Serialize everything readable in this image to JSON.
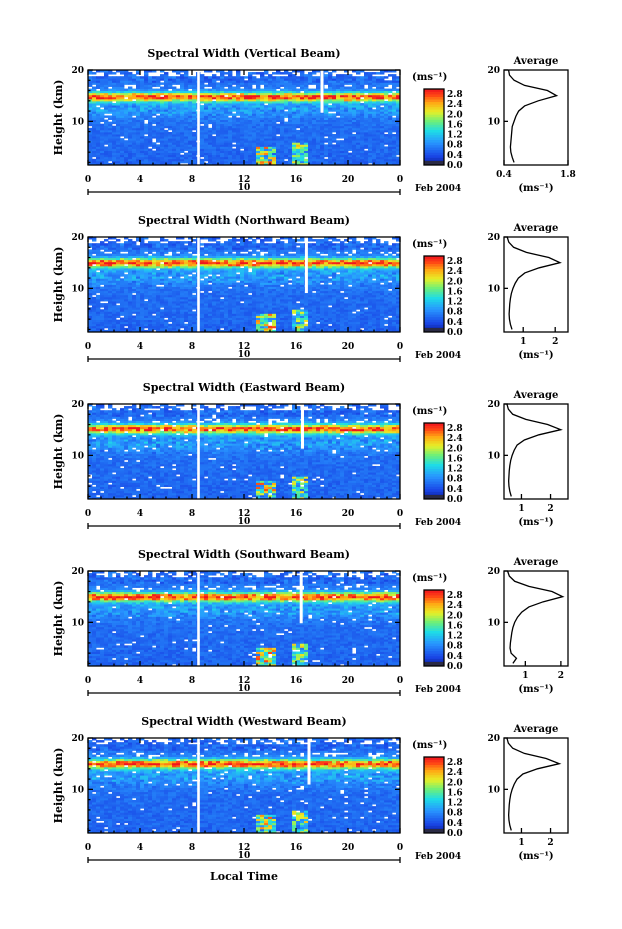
{
  "figure": {
    "month_label": "Feb 2004",
    "xlabel": "Local Time",
    "ylabel": "Height (km)",
    "unit_label": "(ms⁻¹)",
    "average_title": "Average",
    "date_marker": "10"
  },
  "chart_data": [
    {
      "type": "heatmap",
      "title": "Spectral Width (Vertical Beam)",
      "xlabel": "",
      "ylabel": "Height (km)",
      "x_ticks": [
        "0",
        "4",
        "8",
        "12",
        "16",
        "20",
        "0"
      ],
      "xlim": [
        0,
        24
      ],
      "y_ticks": [
        "10",
        "20"
      ],
      "ylim": [
        1.5,
        20
      ],
      "colorbar_ticks": [
        "0.0",
        "0.4",
        "0.8",
        "1.2",
        "1.6",
        "2.0",
        "2.4",
        "2.8"
      ],
      "colorbar_range": [
        0,
        3.0
      ],
      "average_profile": {
        "title": "Average",
        "xlabel": "(ms⁻¹)",
        "x_ticks": [
          "0.4",
          "1.8"
        ],
        "xlim": [
          0.4,
          1.8
        ],
        "heights": [
          2,
          3,
          4,
          5,
          6,
          7,
          8,
          9,
          10,
          11,
          12,
          13,
          14,
          15,
          16,
          17,
          18,
          19,
          20
        ],
        "values": [
          0.62,
          0.58,
          0.55,
          0.54,
          0.55,
          0.56,
          0.57,
          0.58,
          0.62,
          0.66,
          0.72,
          0.85,
          1.15,
          1.55,
          1.35,
          0.85,
          0.62,
          0.52,
          0.5
        ]
      }
    },
    {
      "type": "heatmap",
      "title": "Spectral Width (Northward Beam)",
      "xlabel": "",
      "ylabel": "Height (km)",
      "x_ticks": [
        "0",
        "4",
        "8",
        "12",
        "16",
        "20",
        "0"
      ],
      "xlim": [
        0,
        24
      ],
      "y_ticks": [
        "10",
        "20"
      ],
      "ylim": [
        1.5,
        20
      ],
      "colorbar_ticks": [
        "0.0",
        "0.4",
        "0.8",
        "1.2",
        "1.6",
        "2.0",
        "2.4",
        "2.8"
      ],
      "colorbar_range": [
        0,
        3.0
      ],
      "average_profile": {
        "title": "Average",
        "xlabel": "(ms⁻¹)",
        "x_ticks": [
          "1",
          "2"
        ],
        "xlim": [
          0.4,
          2.4
        ],
        "heights": [
          2,
          3,
          4,
          5,
          6,
          7,
          8,
          9,
          10,
          11,
          12,
          13,
          14,
          15,
          16,
          17,
          18,
          19,
          20
        ],
        "values": [
          0.65,
          0.6,
          0.57,
          0.56,
          0.57,
          0.58,
          0.6,
          0.63,
          0.68,
          0.75,
          0.85,
          1.05,
          1.5,
          2.15,
          1.8,
          1.1,
          0.7,
          0.55,
          0.5
        ]
      }
    },
    {
      "type": "heatmap",
      "title": "Spectral Width (Eastward Beam)",
      "xlabel": "",
      "ylabel": "Height (km)",
      "x_ticks": [
        "0",
        "4",
        "8",
        "12",
        "16",
        "20",
        "0"
      ],
      "xlim": [
        0,
        24
      ],
      "y_ticks": [
        "10",
        "20"
      ],
      "ylim": [
        1.5,
        20
      ],
      "colorbar_ticks": [
        "0.0",
        "0.4",
        "0.8",
        "1.2",
        "1.6",
        "2.0",
        "2.4",
        "2.8"
      ],
      "colorbar_range": [
        0,
        3.0
      ],
      "average_profile": {
        "title": "Average",
        "xlabel": "(ms⁻¹)",
        "x_ticks": [
          "1",
          "2"
        ],
        "xlim": [
          0.4,
          2.6
        ],
        "heights": [
          2,
          3,
          4,
          5,
          6,
          7,
          8,
          9,
          10,
          11,
          12,
          13,
          14,
          15,
          16,
          17,
          18,
          19,
          20
        ],
        "values": [
          0.65,
          0.6,
          0.57,
          0.56,
          0.57,
          0.58,
          0.6,
          0.63,
          0.68,
          0.75,
          0.85,
          1.1,
          1.6,
          2.35,
          1.9,
          1.15,
          0.7,
          0.55,
          0.5
        ]
      }
    },
    {
      "type": "heatmap",
      "title": "Spectral Width (Southward Beam)",
      "xlabel": "",
      "ylabel": "Height (km)",
      "x_ticks": [
        "0",
        "4",
        "8",
        "12",
        "16",
        "20",
        "0"
      ],
      "xlim": [
        0,
        24
      ],
      "y_ticks": [
        "10",
        "20"
      ],
      "ylim": [
        1.5,
        20
      ],
      "colorbar_ticks": [
        "0.0",
        "0.4",
        "0.8",
        "1.2",
        "1.6",
        "2.0",
        "2.4",
        "2.8"
      ],
      "colorbar_range": [
        0,
        3.0
      ],
      "average_profile": {
        "title": "Average",
        "xlabel": "(ms⁻¹)",
        "x_ticks": [
          "1",
          "2"
        ],
        "xlim": [
          0.4,
          2.2
        ],
        "heights": [
          2,
          3,
          4,
          5,
          6,
          7,
          8,
          9,
          10,
          11,
          12,
          13,
          14,
          15,
          16,
          17,
          18,
          19,
          20
        ],
        "values": [
          0.65,
          0.75,
          0.6,
          0.57,
          0.58,
          0.6,
          0.62,
          0.65,
          0.7,
          0.78,
          0.9,
          1.1,
          1.5,
          2.05,
          1.75,
          1.1,
          0.7,
          0.55,
          0.5
        ]
      }
    },
    {
      "type": "heatmap",
      "title": "Spectral Width (Westward Beam)",
      "xlabel": "Local Time",
      "ylabel": "Height (km)",
      "x_ticks": [
        "0",
        "4",
        "8",
        "12",
        "16",
        "20",
        "0"
      ],
      "xlim": [
        0,
        24
      ],
      "y_ticks": [
        "10",
        "20"
      ],
      "ylim": [
        1.5,
        20
      ],
      "colorbar_ticks": [
        "0.0",
        "0.4",
        "0.8",
        "1.2",
        "1.6",
        "2.0",
        "2.4",
        "2.8"
      ],
      "colorbar_range": [
        0,
        3.0
      ],
      "average_profile": {
        "title": "Average",
        "xlabel": "(ms⁻¹)",
        "x_ticks": [
          "1",
          "2"
        ],
        "xlim": [
          0.4,
          2.6
        ],
        "heights": [
          2,
          3,
          4,
          5,
          6,
          7,
          8,
          9,
          10,
          11,
          12,
          13,
          14,
          15,
          16,
          17,
          18,
          19,
          20
        ],
        "values": [
          0.65,
          0.6,
          0.57,
          0.56,
          0.57,
          0.58,
          0.6,
          0.63,
          0.68,
          0.75,
          0.85,
          1.05,
          1.55,
          2.3,
          1.85,
          1.1,
          0.7,
          0.55,
          0.5
        ]
      }
    }
  ]
}
